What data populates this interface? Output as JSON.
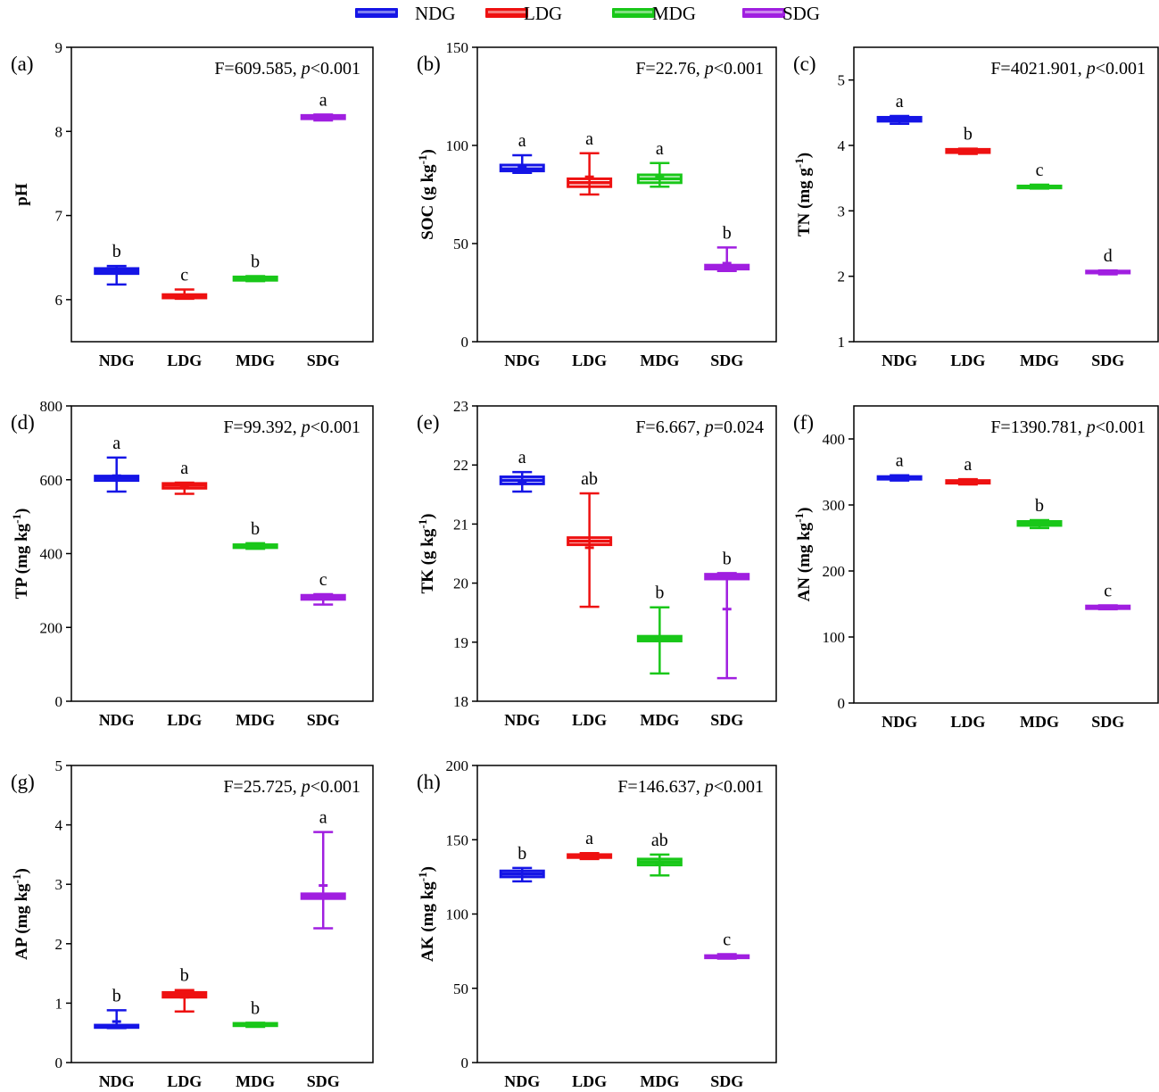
{
  "figure": {
    "legend": [
      {
        "label": "NDG",
        "color": "#1515e6"
      },
      {
        "label": "LDG",
        "color": "#ee1111"
      },
      {
        "label": "MDG",
        "color": "#19c719"
      },
      {
        "label": "SDG",
        "color": "#a01fe0"
      }
    ]
  },
  "chart_data": [
    {
      "type": "box",
      "panel_label": "(a)",
      "ylabel": "pH",
      "stats": {
        "f_text": "F=609.585, ",
        "p_sym": "p",
        "p_text": "<0.001"
      },
      "ylim": [
        5.5,
        9
      ],
      "yticks": [
        6,
        7,
        8,
        9
      ],
      "categories": [
        "NDG",
        "LDG",
        "MDG",
        "SDG"
      ],
      "groups": [
        {
          "name": "NDG",
          "min": 6.18,
          "q1": 6.31,
          "median": 6.34,
          "q3": 6.37,
          "max": 6.4,
          "mean": 6.32,
          "letter": "b"
        },
        {
          "name": "LDG",
          "min": 6.01,
          "q1": 6.02,
          "median": 6.04,
          "q3": 6.06,
          "max": 6.12,
          "mean": 6.05,
          "letter": "c"
        },
        {
          "name": "MDG",
          "min": 6.22,
          "q1": 6.23,
          "median": 6.25,
          "q3": 6.27,
          "max": 6.28,
          "mean": 6.25,
          "letter": "b"
        },
        {
          "name": "SDG",
          "min": 8.13,
          "q1": 8.15,
          "median": 8.17,
          "q3": 8.19,
          "max": 8.2,
          "mean": 8.17,
          "letter": "a"
        }
      ]
    },
    {
      "type": "box",
      "panel_label": "(b)",
      "ylabel": "SOC (g kg-1)",
      "stats": {
        "f_text": "F=22.76, ",
        "p_sym": "p",
        "p_text": "<0.001"
      },
      "ylim": [
        0,
        150
      ],
      "yticks": [
        0,
        50,
        100,
        150
      ],
      "categories": [
        "NDG",
        "LDG",
        "MDG",
        "SDG"
      ],
      "groups": [
        {
          "name": "NDG",
          "min": 86,
          "q1": 87,
          "median": 88,
          "q3": 90,
          "max": 95,
          "mean": 89,
          "letter": "a"
        },
        {
          "name": "LDG",
          "min": 75,
          "q1": 79,
          "median": 81,
          "q3": 83,
          "max": 96,
          "mean": 84,
          "letter": "a"
        },
        {
          "name": "MDG",
          "min": 79,
          "q1": 81,
          "median": 83,
          "q3": 85,
          "max": 91,
          "mean": 84,
          "letter": "a"
        },
        {
          "name": "SDG",
          "min": 36,
          "q1": 37,
          "median": 38,
          "q3": 39,
          "max": 48,
          "mean": 40,
          "letter": "b"
        }
      ]
    },
    {
      "type": "box",
      "panel_label": "(c)",
      "ylabel": "TN (mg g-1)",
      "stats": {
        "f_text": "F=4021.901, ",
        "p_sym": "p",
        "p_text": "<0.001"
      },
      "ylim": [
        1,
        5.5
      ],
      "yticks": [
        1,
        2,
        3,
        4,
        5
      ],
      "categories": [
        "NDG",
        "LDG",
        "MDG",
        "SDG"
      ],
      "groups": [
        {
          "name": "NDG",
          "min": 4.33,
          "q1": 4.37,
          "median": 4.4,
          "q3": 4.43,
          "max": 4.45,
          "mean": 4.39,
          "letter": "a"
        },
        {
          "name": "LDG",
          "min": 3.87,
          "q1": 3.89,
          "median": 3.91,
          "q3": 3.94,
          "max": 3.95,
          "mean": 3.91,
          "letter": "b"
        },
        {
          "name": "MDG",
          "min": 3.34,
          "q1": 3.35,
          "median": 3.37,
          "q3": 3.38,
          "max": 3.4,
          "mean": 3.37,
          "letter": "c"
        },
        {
          "name": "SDG",
          "min": 2.03,
          "q1": 2.05,
          "median": 2.07,
          "q3": 2.08,
          "max": 2.09,
          "mean": 2.07,
          "letter": "d"
        }
      ]
    },
    {
      "type": "box",
      "panel_label": "(d)",
      "ylabel": "TP (mg kg-1)",
      "stats": {
        "f_text": "F=99.392, ",
        "p_sym": "p",
        "p_text": "<0.001"
      },
      "ylim": [
        0,
        800
      ],
      "yticks": [
        0,
        200,
        400,
        600,
        800
      ],
      "categories": [
        "NDG",
        "LDG",
        "MDG",
        "SDG"
      ],
      "groups": [
        {
          "name": "NDG",
          "min": 568,
          "q1": 598,
          "median": 605,
          "q3": 610,
          "max": 660,
          "mean": 611,
          "letter": "a"
        },
        {
          "name": "LDG",
          "min": 562,
          "q1": 577,
          "median": 585,
          "q3": 590,
          "max": 592,
          "mean": 580,
          "letter": "a"
        },
        {
          "name": "MDG",
          "min": 413,
          "q1": 416,
          "median": 420,
          "q3": 424,
          "max": 428,
          "mean": 420,
          "letter": "b"
        },
        {
          "name": "SDG",
          "min": 262,
          "q1": 276,
          "median": 282,
          "q3": 287,
          "max": 290,
          "mean": 278,
          "letter": "c"
        }
      ]
    },
    {
      "type": "box",
      "panel_label": "(e)",
      "ylabel": "TK (g kg-1)",
      "stats": {
        "f_text": "F=6.667, ",
        "p_sym": "p",
        "p_text": "=0.024"
      },
      "ylim": [
        18,
        23
      ],
      "yticks": [
        18,
        19,
        20,
        21,
        22,
        23
      ],
      "categories": [
        "NDG",
        "LDG",
        "MDG",
        "SDG"
      ],
      "groups": [
        {
          "name": "NDG",
          "min": 21.55,
          "q1": 21.68,
          "median": 21.74,
          "q3": 21.8,
          "max": 21.88,
          "mean": 21.72,
          "letter": "a"
        },
        {
          "name": "LDG",
          "min": 19.6,
          "q1": 20.65,
          "median": 20.71,
          "q3": 20.77,
          "max": 21.52,
          "mean": 20.6,
          "letter": "ab"
        },
        {
          "name": "MDG",
          "min": 18.47,
          "q1": 19.02,
          "median": 19.06,
          "q3": 19.1,
          "max": 19.59,
          "mean": 19.06,
          "letter": "b"
        },
        {
          "name": "SDG",
          "min": 18.39,
          "q1": 20.07,
          "median": 20.11,
          "q3": 20.15,
          "max": 20.17,
          "mean": 19.56,
          "letter": "b"
        }
      ]
    },
    {
      "type": "box",
      "panel_label": "(f)",
      "ylabel": "AN (mg kg-1)",
      "stats": {
        "f_text": "F=1390.781, ",
        "p_sym": "p",
        "p_text": "<0.001"
      },
      "ylim": [
        0,
        450
      ],
      "yticks": [
        0,
        100,
        200,
        300,
        400
      ],
      "categories": [
        "NDG",
        "LDG",
        "MDG",
        "SDG"
      ],
      "groups": [
        {
          "name": "NDG",
          "min": 337,
          "q1": 339,
          "median": 341,
          "q3": 343,
          "max": 345,
          "mean": 341,
          "letter": "a"
        },
        {
          "name": "LDG",
          "min": 331,
          "q1": 333,
          "median": 335,
          "q3": 337,
          "max": 339,
          "mean": 335,
          "letter": "a"
        },
        {
          "name": "MDG",
          "min": 265,
          "q1": 269,
          "median": 272,
          "q3": 275,
          "max": 277,
          "mean": 271,
          "letter": "b"
        },
        {
          "name": "SDG",
          "min": 142,
          "q1": 143,
          "median": 145,
          "q3": 147,
          "max": 148,
          "mean": 145,
          "letter": "c"
        }
      ]
    },
    {
      "type": "box",
      "panel_label": "(g)",
      "ylabel": "AP (mg kg-1)",
      "stats": {
        "f_text": "F=25.725, ",
        "p_sym": "p",
        "p_text": "<0.001"
      },
      "ylim": [
        0,
        5
      ],
      "yticks": [
        0,
        1,
        2,
        3,
        4,
        5
      ],
      "categories": [
        "NDG",
        "LDG",
        "MDG",
        "SDG"
      ],
      "groups": [
        {
          "name": "NDG",
          "min": 0.58,
          "q1": 0.59,
          "median": 0.61,
          "q3": 0.63,
          "max": 0.88,
          "mean": 0.69,
          "letter": "b"
        },
        {
          "name": "LDG",
          "min": 0.86,
          "q1": 1.1,
          "median": 1.14,
          "q3": 1.18,
          "max": 1.22,
          "mean": 1.1,
          "letter": "b"
        },
        {
          "name": "MDG",
          "min": 0.6,
          "q1": 0.62,
          "median": 0.64,
          "q3": 0.66,
          "max": 0.67,
          "mean": 0.64,
          "letter": "b"
        },
        {
          "name": "SDG",
          "min": 2.26,
          "q1": 2.76,
          "median": 2.8,
          "q3": 2.84,
          "max": 3.88,
          "mean": 2.98,
          "letter": "a"
        }
      ]
    },
    {
      "type": "box",
      "panel_label": "(h)",
      "ylabel": "AK (mg kg-1)",
      "stats": {
        "f_text": "F=146.637, ",
        "p_sym": "p",
        "p_text": "<0.001"
      },
      "ylim": [
        0,
        200
      ],
      "yticks": [
        0,
        50,
        100,
        150,
        200
      ],
      "categories": [
        "NDG",
        "LDG",
        "MDG",
        "SDG"
      ],
      "groups": [
        {
          "name": "NDG",
          "min": 122,
          "q1": 125,
          "median": 127,
          "q3": 129,
          "max": 131,
          "mean": 127,
          "letter": "b"
        },
        {
          "name": "LDG",
          "min": 137,
          "q1": 138,
          "median": 139,
          "q3": 140,
          "max": 141,
          "mean": 139,
          "letter": "a"
        },
        {
          "name": "MDG",
          "min": 126,
          "q1": 133,
          "median": 135,
          "q3": 137,
          "max": 140,
          "mean": 134,
          "letter": "ab"
        },
        {
          "name": "SDG",
          "min": 70,
          "q1": 70.5,
          "median": 71,
          "q3": 72,
          "max": 73,
          "mean": 71,
          "letter": "c"
        }
      ]
    }
  ]
}
